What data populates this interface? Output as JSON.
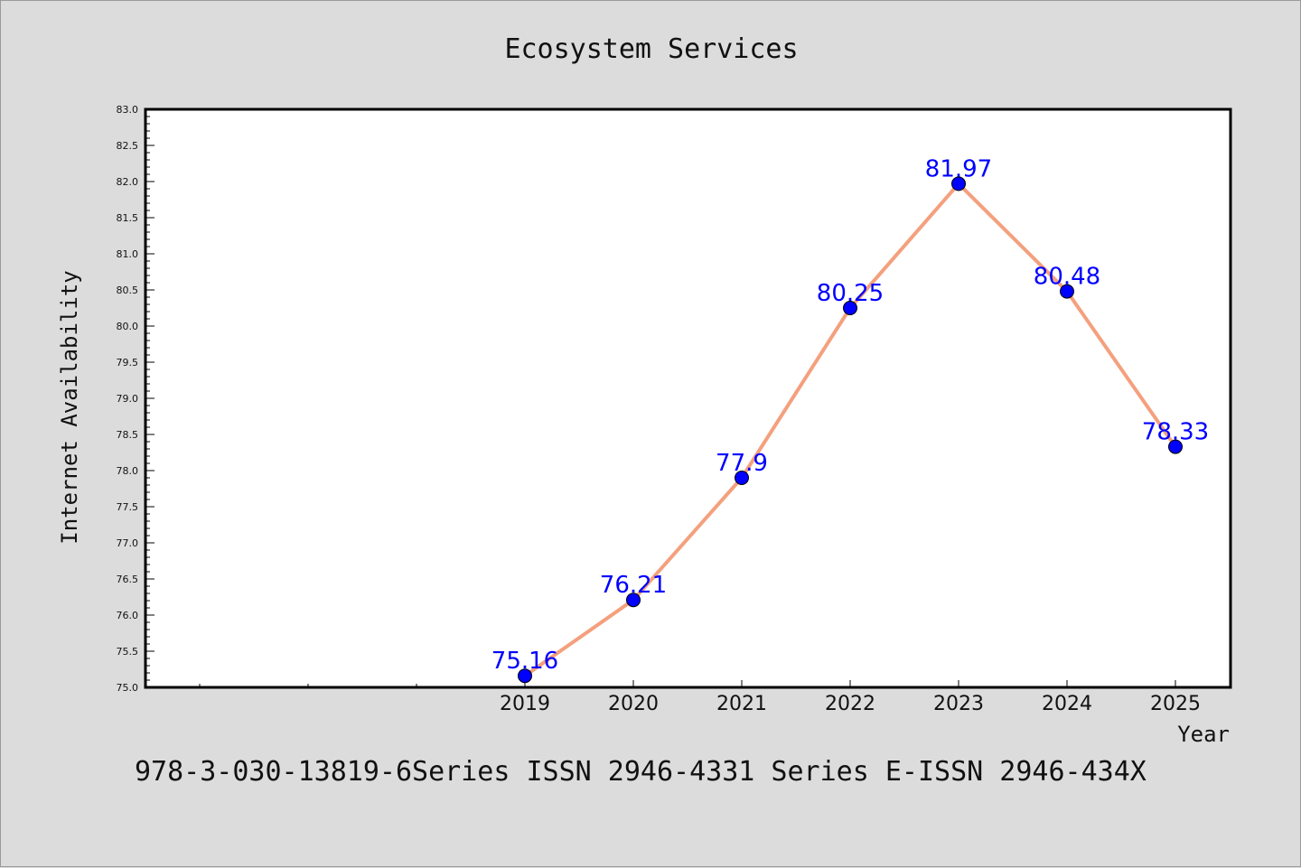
{
  "chart_data": {
    "type": "line",
    "title": "Ecosystem Services",
    "xlabel": "Year",
    "ylabel": "Internet Availability",
    "categories": [
      "2019",
      "2020",
      "2021",
      "2022",
      "2023",
      "2024",
      "2025"
    ],
    "series": [
      {
        "values": [
          75.16,
          76.21,
          77.9,
          80.25,
          81.97,
          80.48,
          78.33
        ]
      }
    ],
    "data_labels": [
      "75.16",
      "76.21",
      "77.9",
      "80.25",
      "81.97",
      "80.48",
      "78.33"
    ],
    "ylim": [
      75.0,
      83.0
    ],
    "yticks": [
      "75.0",
      "75.5",
      "76.0",
      "76.5",
      "77.0",
      "77.5",
      "78.0",
      "78.5",
      "79.0",
      "79.5",
      "80.0",
      "80.5",
      "81.0",
      "81.5",
      "82.0",
      "82.5",
      "83.0"
    ],
    "grid": false,
    "line_color": "#f4a07e",
    "marker_color": "#0000ff",
    "label_color": "#0000ff"
  },
  "footer": {
    "text": "978-3-030-13819-6Series ISSN 2946-4331 Series E-ISSN 2946-434X"
  }
}
